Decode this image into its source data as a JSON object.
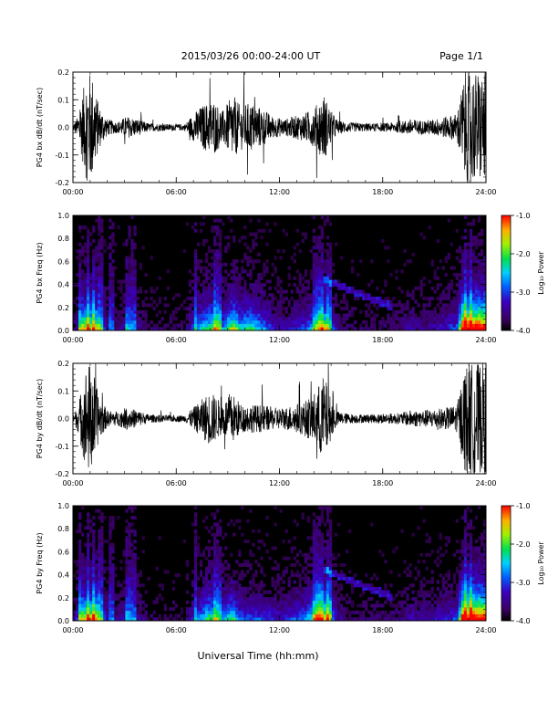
{
  "header": {
    "title": "2015/03/26  00:00-24:00 UT",
    "page": "Page 1/1"
  },
  "xlabel": "Universal Time (hh:mm)",
  "colorbar_label": "Log₁₀ Power",
  "chart_data": [
    {
      "type": "line",
      "ylabel": "PG4 bx dB/dt (nT/sec)",
      "xlim": [
        0,
        24
      ],
      "ylim": [
        -0.2,
        0.2
      ],
      "xticks": [
        "00:00",
        "06:00",
        "12:00",
        "18:00",
        "24:00"
      ],
      "yticks": [
        "0.2",
        "0.1",
        "0.0",
        "-0.1",
        "-0.2"
      ],
      "activity": [
        [
          0.0,
          0.01
        ],
        [
          0.3,
          0.04
        ],
        [
          0.8,
          0.2
        ],
        [
          1.1,
          0.2
        ],
        [
          1.5,
          0.08
        ],
        [
          2.0,
          0.03
        ],
        [
          2.6,
          0.02
        ],
        [
          3.1,
          0.04
        ],
        [
          3.8,
          0.03
        ],
        [
          4.4,
          0.015
        ],
        [
          5.5,
          0.012
        ],
        [
          6.5,
          0.012
        ],
        [
          7.0,
          0.05
        ],
        [
          7.5,
          0.08
        ],
        [
          8.2,
          0.1
        ],
        [
          8.7,
          0.06
        ],
        [
          9.3,
          0.12
        ],
        [
          9.7,
          0.08
        ],
        [
          10.3,
          0.09
        ],
        [
          11.0,
          0.07
        ],
        [
          11.6,
          0.04
        ],
        [
          12.3,
          0.03
        ],
        [
          12.8,
          0.04
        ],
        [
          13.4,
          0.05
        ],
        [
          14.0,
          0.07
        ],
        [
          14.6,
          0.12
        ],
        [
          15.0,
          0.06
        ],
        [
          15.4,
          0.025
        ],
        [
          16.0,
          0.018
        ],
        [
          17.0,
          0.015
        ],
        [
          18.0,
          0.015
        ],
        [
          19.0,
          0.02
        ],
        [
          19.6,
          0.03
        ],
        [
          20.3,
          0.025
        ],
        [
          21.0,
          0.03
        ],
        [
          21.7,
          0.04
        ],
        [
          22.3,
          0.05
        ],
        [
          22.8,
          0.2
        ],
        [
          24.0,
          0.2
        ]
      ]
    },
    {
      "type": "heatmap",
      "ylabel": "PG4 bx Freq (Hz)",
      "xlim": [
        0,
        24
      ],
      "ylim": [
        0,
        1
      ],
      "xticks": [
        "00:00",
        "06:00",
        "12:00",
        "18:00",
        "24:00"
      ],
      "yticks": [
        "1.0",
        "0.8",
        "0.6",
        "0.4",
        "0.2",
        "0.0"
      ],
      "colorbar": {
        "range": [
          -4,
          -1
        ],
        "ticks": [
          "-1.0",
          "-2.0",
          "-3.0",
          "-4.0"
        ]
      },
      "vertical_bands": [
        0.4,
        0.9,
        1.2,
        1.6,
        2.2,
        3.2,
        3.5,
        7.1,
        8.3,
        8.6,
        14.1,
        14.4,
        14.9,
        22.8,
        23.1
      ]
    },
    {
      "type": "line",
      "ylabel": "PG4 by dB/dt (nT/sec)",
      "xlim": [
        0,
        24
      ],
      "ylim": [
        -0.2,
        0.2
      ],
      "xticks": [
        "00:00",
        "06:00",
        "12:00",
        "18:00",
        "24:00"
      ],
      "yticks": [
        "0.2",
        "0.1",
        "0.0",
        "-0.1",
        "-0.2"
      ],
      "activity": [
        [
          0.0,
          0.01
        ],
        [
          0.3,
          0.05
        ],
        [
          0.8,
          0.2
        ],
        [
          1.1,
          0.2
        ],
        [
          1.5,
          0.08
        ],
        [
          2.0,
          0.03
        ],
        [
          2.6,
          0.025
        ],
        [
          3.1,
          0.04
        ],
        [
          3.8,
          0.03
        ],
        [
          4.4,
          0.015
        ],
        [
          5.5,
          0.012
        ],
        [
          6.5,
          0.012
        ],
        [
          7.0,
          0.04
        ],
        [
          7.5,
          0.07
        ],
        [
          8.0,
          0.1
        ],
        [
          8.6,
          0.06
        ],
        [
          9.3,
          0.09
        ],
        [
          9.8,
          0.05
        ],
        [
          10.3,
          0.05
        ],
        [
          11.0,
          0.05
        ],
        [
          11.6,
          0.04
        ],
        [
          12.3,
          0.04
        ],
        [
          12.8,
          0.05
        ],
        [
          13.4,
          0.06
        ],
        [
          14.0,
          0.09
        ],
        [
          14.6,
          0.16
        ],
        [
          15.0,
          0.07
        ],
        [
          15.4,
          0.025
        ],
        [
          16.0,
          0.018
        ],
        [
          17.0,
          0.015
        ],
        [
          18.0,
          0.018
        ],
        [
          19.0,
          0.02
        ],
        [
          19.6,
          0.03
        ],
        [
          20.3,
          0.03
        ],
        [
          21.0,
          0.035
        ],
        [
          21.7,
          0.04
        ],
        [
          22.3,
          0.05
        ],
        [
          22.8,
          0.2
        ],
        [
          24.0,
          0.2
        ]
      ]
    },
    {
      "type": "heatmap",
      "ylabel": "PG4 by Freq (Hz)",
      "xlim": [
        0,
        24
      ],
      "ylim": [
        0,
        1
      ],
      "xticks": [
        "00:00",
        "06:00",
        "12:00",
        "18:00",
        "24:00"
      ],
      "yticks": [
        "1.0",
        "0.8",
        "0.6",
        "0.4",
        "0.2",
        "0.0"
      ],
      "colorbar": {
        "range": [
          -4,
          -1
        ],
        "ticks": [
          "-1.0",
          "-2.0",
          "-3.0",
          "-4.0"
        ]
      },
      "vertical_bands": [
        0.4,
        0.9,
        1.2,
        1.6,
        2.2,
        3.2,
        3.5,
        7.1,
        8.3,
        8.6,
        14.1,
        14.4,
        14.9,
        22.8,
        23.1
      ]
    }
  ]
}
